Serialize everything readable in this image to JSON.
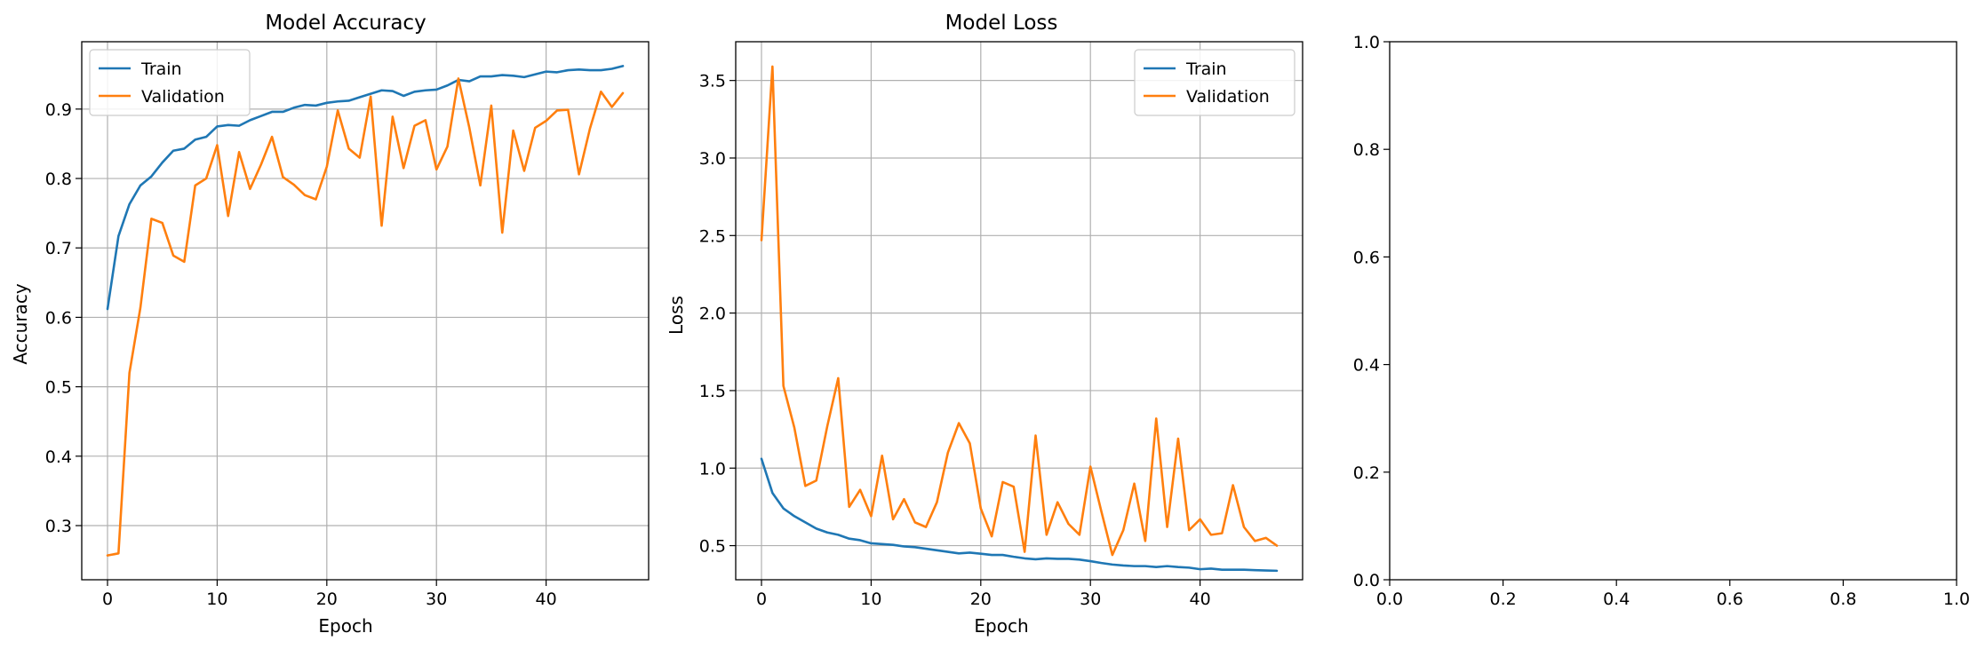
{
  "colors": {
    "train": "#1f77b4",
    "validation": "#ff7f0e",
    "grid": "#b0b0b0"
  },
  "chart_data": [
    {
      "type": "line",
      "title": "Model Accuracy",
      "xlabel": "Epoch",
      "ylabel": "Accuracy",
      "grid": true,
      "legend": "upper-left",
      "xlim": [
        -2.35,
        49.35
      ],
      "ylim": [
        0.222,
        0.997
      ],
      "xticks": [
        "0",
        "10",
        "20",
        "30",
        "40"
      ],
      "xtick_values": [
        0,
        10,
        20,
        30,
        40
      ],
      "yticks": [
        "0.3",
        "0.4",
        "0.5",
        "0.6",
        "0.7",
        "0.8",
        "0.9"
      ],
      "ytick_values": [
        0.3,
        0.4,
        0.5,
        0.6,
        0.7,
        0.8,
        0.9
      ],
      "x": [
        0,
        1,
        2,
        3,
        4,
        5,
        6,
        7,
        8,
        9,
        10,
        11,
        12,
        13,
        14,
        15,
        16,
        17,
        18,
        19,
        20,
        21,
        22,
        23,
        24,
        25,
        26,
        27,
        28,
        29,
        30,
        31,
        32,
        33,
        34,
        35,
        36,
        37,
        38,
        39,
        40,
        41,
        42,
        43,
        44,
        45,
        46,
        47
      ],
      "series": [
        {
          "name": "Train",
          "color_key": "train",
          "values": [
            0.612,
            0.717,
            0.763,
            0.79,
            0.803,
            0.823,
            0.84,
            0.843,
            0.856,
            0.86,
            0.875,
            0.877,
            0.876,
            0.884,
            0.89,
            0.896,
            0.896,
            0.902,
            0.906,
            0.905,
            0.909,
            0.911,
            0.912,
            0.917,
            0.922,
            0.927,
            0.926,
            0.919,
            0.925,
            0.927,
            0.928,
            0.934,
            0.942,
            0.94,
            0.947,
            0.947,
            0.949,
            0.948,
            0.946,
            0.95,
            0.954,
            0.953,
            0.956,
            0.957,
            0.956,
            0.956,
            0.958,
            0.962
          ]
        },
        {
          "name": "Validation",
          "color_key": "validation",
          "values": [
            0.257,
            0.26,
            0.52,
            0.614,
            0.742,
            0.736,
            0.689,
            0.68,
            0.79,
            0.8,
            0.848,
            0.746,
            0.838,
            0.785,
            0.82,
            0.86,
            0.802,
            0.791,
            0.776,
            0.77,
            0.817,
            0.898,
            0.843,
            0.83,
            0.918,
            0.732,
            0.889,
            0.815,
            0.876,
            0.884,
            0.813,
            0.846,
            0.944,
            0.873,
            0.79,
            0.905,
            0.722,
            0.869,
            0.811,
            0.873,
            0.883,
            0.898,
            0.899,
            0.806,
            0.872,
            0.925,
            0.903,
            0.923
          ]
        }
      ]
    },
    {
      "type": "line",
      "title": "Model Loss",
      "xlabel": "Epoch",
      "ylabel": "Loss",
      "grid": true,
      "legend": "upper-right",
      "xlim": [
        -2.35,
        49.35
      ],
      "ylim": [
        0.28,
        3.75
      ],
      "xticks": [
        "0",
        "10",
        "20",
        "30",
        "40"
      ],
      "xtick_values": [
        0,
        10,
        20,
        30,
        40
      ],
      "yticks": [
        "0.5",
        "1.0",
        "1.5",
        "2.0",
        "2.5",
        "3.0",
        "3.5"
      ],
      "ytick_values": [
        0.5,
        1.0,
        1.5,
        2.0,
        2.5,
        3.0,
        3.5
      ],
      "x": [
        0,
        1,
        2,
        3,
        4,
        5,
        6,
        7,
        8,
        9,
        10,
        11,
        12,
        13,
        14,
        15,
        16,
        17,
        18,
        19,
        20,
        21,
        22,
        23,
        24,
        25,
        26,
        27,
        28,
        29,
        30,
        31,
        32,
        33,
        34,
        35,
        36,
        37,
        38,
        39,
        40,
        41,
        42,
        43,
        44,
        45,
        46,
        47
      ],
      "series": [
        {
          "name": "Train",
          "color_key": "train",
          "values": [
            1.06,
            0.84,
            0.74,
            0.69,
            0.65,
            0.61,
            0.585,
            0.57,
            0.545,
            0.535,
            0.515,
            0.51,
            0.505,
            0.495,
            0.49,
            0.48,
            0.47,
            0.46,
            0.45,
            0.455,
            0.448,
            0.44,
            0.44,
            0.428,
            0.418,
            0.412,
            0.418,
            0.415,
            0.415,
            0.41,
            0.4,
            0.388,
            0.378,
            0.372,
            0.368,
            0.368,
            0.362,
            0.368,
            0.362,
            0.358,
            0.348,
            0.352,
            0.345,
            0.345,
            0.345,
            0.342,
            0.34,
            0.338
          ]
        },
        {
          "name": "Validation",
          "color_key": "validation",
          "values": [
            2.47,
            3.59,
            1.53,
            1.26,
            0.885,
            0.92,
            1.27,
            1.58,
            0.75,
            0.86,
            0.69,
            1.08,
            0.67,
            0.8,
            0.65,
            0.62,
            0.78,
            1.1,
            1.29,
            1.16,
            0.74,
            0.56,
            0.91,
            0.88,
            0.46,
            1.21,
            0.57,
            0.78,
            0.64,
            0.57,
            1.01,
            0.72,
            0.44,
            0.6,
            0.9,
            0.53,
            1.32,
            0.62,
            1.19,
            0.6,
            0.67,
            0.57,
            0.58,
            0.89,
            0.62,
            0.53,
            0.55,
            0.5
          ]
        }
      ]
    },
    {
      "type": "line",
      "title": "",
      "xlabel": "",
      "ylabel": "",
      "grid": false,
      "xlim": [
        0.0,
        1.0
      ],
      "ylim": [
        0.0,
        1.0
      ],
      "xticks": [
        "0.0",
        "0.2",
        "0.4",
        "0.6",
        "0.8",
        "1.0"
      ],
      "xtick_values": [
        0.0,
        0.2,
        0.4,
        0.6,
        0.8,
        1.0
      ],
      "yticks": [
        "0.0",
        "0.2",
        "0.4",
        "0.6",
        "0.8",
        "1.0"
      ],
      "ytick_values": [
        0.0,
        0.2,
        0.4,
        0.6,
        0.8,
        1.0
      ],
      "x": [],
      "series": []
    }
  ]
}
